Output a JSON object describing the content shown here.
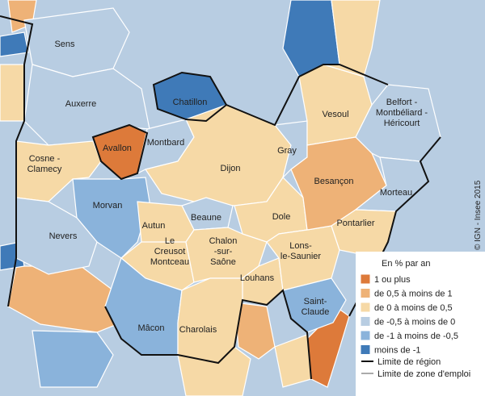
{
  "map": {
    "zones": [
      {
        "lines": [
          "Sens"
        ],
        "color": "#b8cde2"
      },
      {
        "lines": [
          "Auxerre"
        ],
        "color": "#b8cde2"
      },
      {
        "lines": [
          "Chatillon"
        ],
        "color": "#3f7ab8"
      },
      {
        "lines": [
          "Avallon"
        ],
        "color": "#dd7a3a"
      },
      {
        "lines": [
          "Montbard"
        ],
        "color": "#b8cde2"
      },
      {
        "lines": [
          "Cosne -",
          "Clamecy"
        ],
        "color": "#f6d9a6"
      },
      {
        "lines": [
          "Morvan"
        ],
        "color": "#8ab3db"
      },
      {
        "lines": [
          "Nevers"
        ],
        "color": "#b8cde2"
      },
      {
        "lines": [
          "Dijon"
        ],
        "color": "#f6d9a6"
      },
      {
        "lines": [
          "Beaune"
        ],
        "color": "#b8cde2"
      },
      {
        "lines": [
          "Autun"
        ],
        "color": "#f6d9a6"
      },
      {
        "lines": [
          "Le",
          "Creusot",
          "Montceau"
        ],
        "color": "#f6d9a6"
      },
      {
        "lines": [
          "Chalon",
          "-sur-",
          "Saône"
        ],
        "color": "#f6d9a6"
      },
      {
        "lines": [
          "Louhans"
        ],
        "color": "#f6d9a6"
      },
      {
        "lines": [
          "Charolais"
        ],
        "color": "#8ab3db"
      },
      {
        "lines": [
          "Mâcon"
        ],
        "color": "#f6d9a6"
      },
      {
        "lines": [
          "Dole"
        ],
        "color": "#f6d9a6"
      },
      {
        "lines": [
          "Lons-",
          "le-Saunier"
        ],
        "color": "#f6d9a6"
      },
      {
        "lines": [
          "Gray"
        ],
        "color": "#b8cde2"
      },
      {
        "lines": [
          "Vesoul"
        ],
        "color": "#f6d9a6"
      },
      {
        "lines": [
          "Besançon"
        ],
        "color": "#eeb277"
      },
      {
        "lines": [
          "Belfort -",
          "Montbéliard -",
          "Héricourt"
        ],
        "color": "#b8cde2"
      },
      {
        "lines": [
          "Morteau"
        ],
        "color": "#b8cde2"
      },
      {
        "lines": [
          "Pontarlier"
        ],
        "color": "#f6d9a6"
      },
      {
        "lines": [
          "Saint-",
          "Claude"
        ],
        "color": "#8ab3db"
      }
    ],
    "legend": {
      "title": "En % par an",
      "items": [
        {
          "label": "1 ou plus",
          "color": "#dd7a3a"
        },
        {
          "label": "de 0,5 à moins de 1",
          "color": "#eeb277"
        },
        {
          "label": "de 0 à moins de 0,5",
          "color": "#f6d9a6"
        },
        {
          "label": "de -0,5 à moins de 0",
          "color": "#b8cde2"
        },
        {
          "label": "de -1 à moins de -0,5",
          "color": "#8ab3db"
        },
        {
          "label": "moins de -1",
          "color": "#3f7ab8"
        }
      ],
      "lines": [
        "Limite de région",
        "Limite de zone d'emploi"
      ]
    },
    "credit": "© IGN - Insee 2015"
  }
}
